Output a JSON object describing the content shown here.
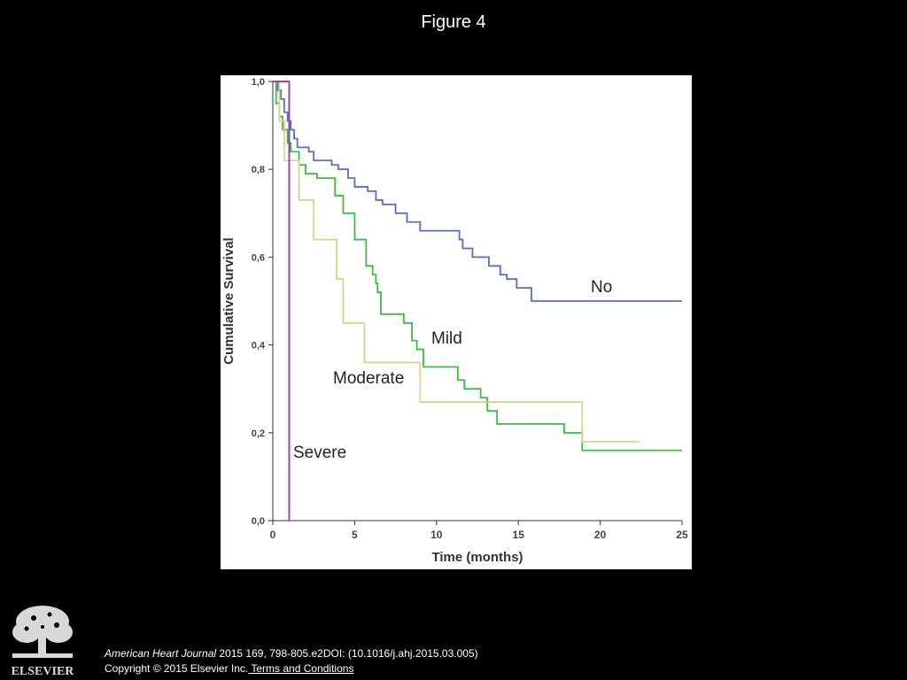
{
  "slide": {
    "title": "Figure 4"
  },
  "footer": {
    "journal": "American Heart Journal",
    "citation": " 2015 169, 798-805.e2DOI: (10.1016/j.ahj.2015.03.005)",
    "copyright": "Copyright © 2015 Elsevier Inc.",
    "terms_link": " Terms and Conditions",
    "publisher_logo_text": "ELSEVIER"
  },
  "chart_data": {
    "type": "line",
    "step": true,
    "title": "",
    "xlabel": "Time (months)",
    "ylabel": "Cumulative Survival",
    "xlim": [
      0,
      25
    ],
    "ylim": [
      0,
      1
    ],
    "xticks": [
      0,
      5,
      10,
      15,
      20,
      25
    ],
    "xtick_labels": [
      "0",
      "5",
      "10",
      "15",
      "20",
      "25"
    ],
    "yticks": [
      0,
      0.2,
      0.4,
      0.6,
      0.8,
      1.0
    ],
    "ytick_labels": [
      "0,0",
      "0,2",
      "0,4",
      "0,6",
      "0,8",
      "1,0"
    ],
    "grid": false,
    "series": [
      {
        "name": "No",
        "color": "#5a6fc0",
        "x": [
          0,
          0.3,
          0.5,
          0.7,
          0.9,
          1.1,
          1.3,
          1.5,
          2.2,
          2.5,
          3.6,
          4.0,
          4.6,
          5.0,
          5.8,
          6.3,
          6.7,
          7.5,
          8.2,
          9.0,
          11.4,
          11.6,
          12.2,
          13.2,
          13.9,
          14.3,
          14.9,
          15.8,
          25.0
        ],
        "y": [
          1.0,
          0.98,
          0.96,
          0.93,
          0.91,
          0.89,
          0.87,
          0.85,
          0.84,
          0.82,
          0.81,
          0.8,
          0.78,
          0.76,
          0.75,
          0.73,
          0.72,
          0.7,
          0.68,
          0.66,
          0.64,
          0.62,
          0.6,
          0.58,
          0.56,
          0.55,
          0.53,
          0.5,
          0.5
        ]
      },
      {
        "name": "Mild",
        "color": "#3dbd44",
        "x": [
          0,
          0.2,
          0.4,
          0.6,
          0.9,
          1.1,
          1.6,
          2.0,
          2.7,
          3.8,
          4.3,
          5.0,
          5.7,
          6.1,
          6.3,
          6.4,
          6.6,
          8.0,
          8.5,
          8.8,
          9.2,
          11.3,
          11.7,
          12.7,
          13.1,
          13.7,
          17.8,
          18.9,
          25.0
        ],
        "y": [
          1.0,
          0.95,
          0.92,
          0.89,
          0.86,
          0.84,
          0.81,
          0.79,
          0.78,
          0.74,
          0.7,
          0.64,
          0.58,
          0.56,
          0.54,
          0.52,
          0.47,
          0.45,
          0.41,
          0.39,
          0.35,
          0.32,
          0.3,
          0.28,
          0.25,
          0.22,
          0.2,
          0.16,
          0.16
        ]
      },
      {
        "name": "Moderate",
        "color": "#dcd48c",
        "x": [
          0,
          0.4,
          0.7,
          1.6,
          2.5,
          3.9,
          4.3,
          4.9,
          5.6,
          9.0,
          18.9,
          22.4
        ],
        "y": [
          1.0,
          0.91,
          0.82,
          0.73,
          0.64,
          0.55,
          0.45,
          0.45,
          0.36,
          0.27,
          0.18,
          0.18
        ]
      },
      {
        "name": "Severe",
        "color": "#9b45a7",
        "x": [
          0,
          1.0,
          1.0
        ],
        "y": [
          1.0,
          1.0,
          0.0
        ]
      }
    ]
  }
}
